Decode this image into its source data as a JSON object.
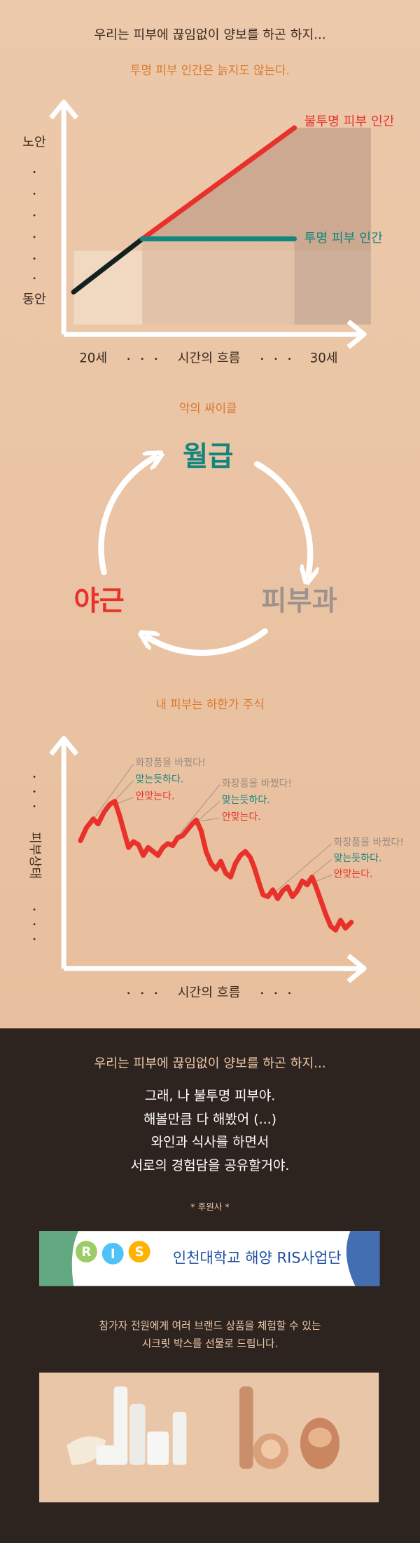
{
  "header": {
    "title": "우리는 피부에 끊임없이 양보를 하곤 하지...",
    "subtitle": "투명 피부 인간은 늙지도 않는다."
  },
  "chart1": {
    "y_top": "노안",
    "y_bottom": "동안",
    "x_start": "20세",
    "x_label": "시간의 흐름",
    "x_end": "30세",
    "series_opaque": "불투명 피부 인간",
    "series_clear": "투명 피부 인간"
  },
  "cycle": {
    "title": "악의 싸이클",
    "nodes": [
      "월급",
      "피부과",
      "야근"
    ]
  },
  "chart2": {
    "title": "내 피부는 하한가 주식",
    "y_label": "피부상태",
    "x_label": "시간의 흐름",
    "annotations": [
      [
        "화장품을 바꿨다!",
        "맞는듯하다.",
        "안맞는다."
      ],
      [
        "화장품을 바꿨다!",
        "맞는듯하다.",
        "안맞는다."
      ],
      [
        "화장품을 바꿨다!",
        "맞는듯하다.",
        "안맞는다."
      ]
    ]
  },
  "footer": {
    "intro": "우리는 피부에 끊임없이 양보를 하곤 하지...",
    "lines": [
      "그래, 나 불투명 피부야.",
      "해볼만큼 다 해봤어 (...)",
      "와인과 식사를 하면서",
      "서로의 경험담을 공유할거야."
    ],
    "sponsor_label": "* 후원사 *",
    "sponsor": "인천대학교 해양 RIS사업단",
    "sponsor_letters": [
      "R",
      "I",
      "S"
    ],
    "gift_lines": [
      "참가자 전원에게 여러 브랜드 상품을 체험할 수 있는",
      "시크릿 박스를 선물로 드립니다."
    ]
  }
}
